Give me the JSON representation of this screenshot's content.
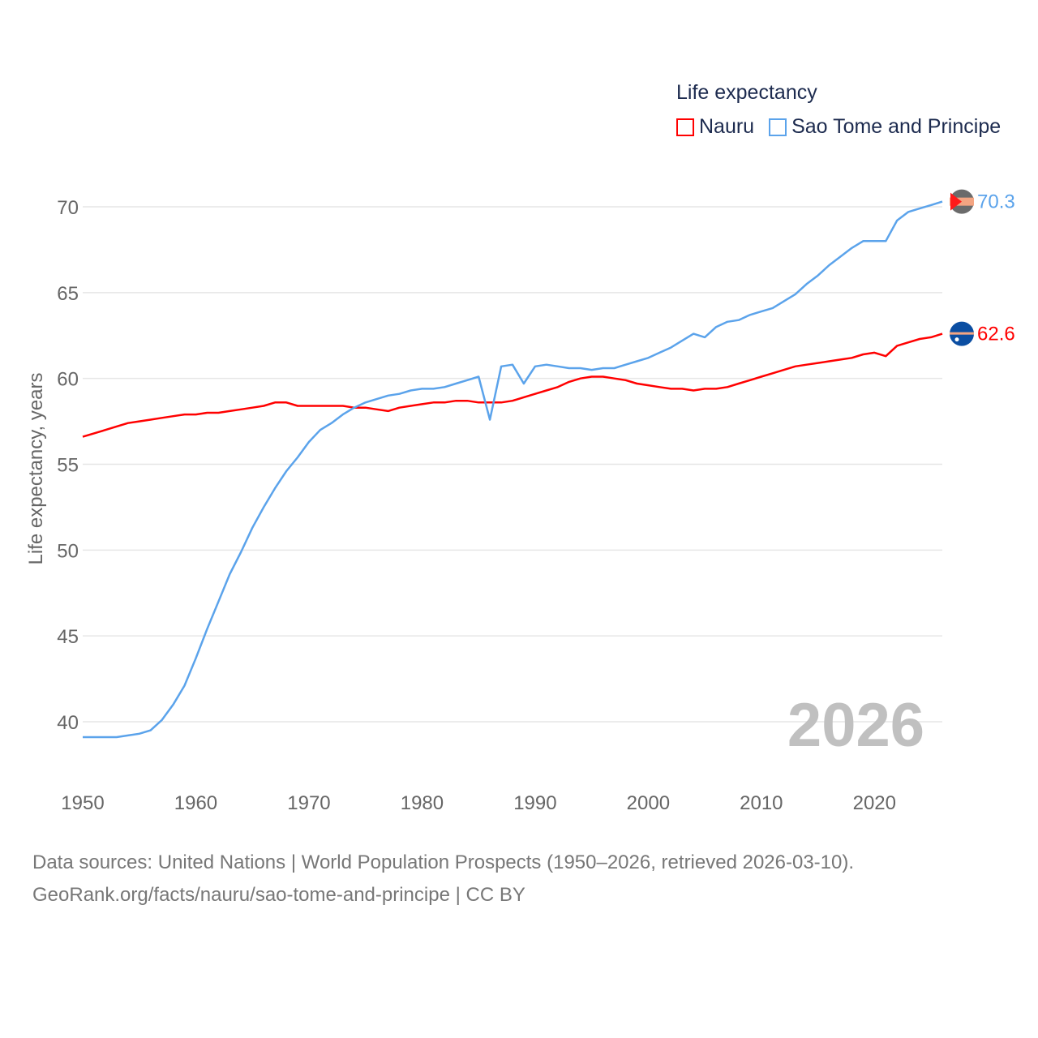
{
  "chart_data": {
    "type": "line",
    "title": "Life expectancy",
    "xlabel": "",
    "ylabel": "Life expectancy, years",
    "xlim": [
      1950,
      2026
    ],
    "ylim": [
      37.5,
      72
    ],
    "yticks": [
      40,
      45,
      50,
      55,
      60,
      65,
      70
    ],
    "xticks": [
      1950,
      1960,
      1970,
      1980,
      1990,
      2000,
      2010,
      2020
    ],
    "grid": true,
    "legend_position": "top-right",
    "year_watermark": "2026",
    "x": [
      1950,
      1951,
      1952,
      1953,
      1954,
      1955,
      1956,
      1957,
      1958,
      1959,
      1960,
      1961,
      1962,
      1963,
      1964,
      1965,
      1966,
      1967,
      1968,
      1969,
      1970,
      1971,
      1972,
      1973,
      1974,
      1975,
      1976,
      1977,
      1978,
      1979,
      1980,
      1981,
      1982,
      1983,
      1984,
      1985,
      1986,
      1987,
      1988,
      1989,
      1990,
      1991,
      1992,
      1993,
      1994,
      1995,
      1996,
      1997,
      1998,
      1999,
      2000,
      2001,
      2002,
      2003,
      2004,
      2005,
      2006,
      2007,
      2008,
      2009,
      2010,
      2011,
      2012,
      2013,
      2014,
      2015,
      2016,
      2017,
      2018,
      2019,
      2020,
      2021,
      2022,
      2023,
      2024,
      2025,
      2026
    ],
    "series": [
      {
        "name": "Nauru",
        "color": "#ff0000",
        "end_label": "62.6",
        "values": [
          56.6,
          56.8,
          57.0,
          57.2,
          57.4,
          57.5,
          57.6,
          57.7,
          57.8,
          57.9,
          57.9,
          58.0,
          58.0,
          58.1,
          58.2,
          58.3,
          58.4,
          58.6,
          58.6,
          58.4,
          58.4,
          58.4,
          58.4,
          58.4,
          58.3,
          58.3,
          58.2,
          58.1,
          58.3,
          58.4,
          58.5,
          58.6,
          58.6,
          58.7,
          58.7,
          58.6,
          58.6,
          58.6,
          58.7,
          58.9,
          59.1,
          59.3,
          59.5,
          59.8,
          60.0,
          60.1,
          60.1,
          60.0,
          59.9,
          59.7,
          59.6,
          59.5,
          59.4,
          59.4,
          59.3,
          59.4,
          59.4,
          59.5,
          59.7,
          59.9,
          60.1,
          60.3,
          60.5,
          60.7,
          60.8,
          60.9,
          61.0,
          61.1,
          61.2,
          61.4,
          61.5,
          61.3,
          61.9,
          62.1,
          62.3,
          62.4,
          62.6
        ]
      },
      {
        "name": "Sao Tome and Principe",
        "color": "#5ba3eb",
        "end_label": "70.3",
        "values": [
          39.1,
          39.1,
          39.1,
          39.1,
          39.2,
          39.3,
          39.5,
          40.1,
          41.0,
          42.1,
          43.7,
          45.4,
          47.0,
          48.6,
          49.9,
          51.3,
          52.5,
          53.6,
          54.6,
          55.4,
          56.3,
          57.0,
          57.4,
          57.9,
          58.3,
          58.6,
          58.8,
          59.0,
          59.1,
          59.3,
          59.4,
          59.4,
          59.5,
          59.7,
          59.9,
          60.1,
          57.6,
          60.7,
          60.8,
          59.7,
          60.7,
          60.8,
          60.7,
          60.6,
          60.6,
          60.5,
          60.6,
          60.6,
          60.8,
          61.0,
          61.2,
          61.5,
          61.8,
          62.2,
          62.6,
          62.4,
          63.0,
          63.3,
          63.4,
          63.7,
          63.9,
          64.1,
          64.5,
          64.9,
          65.5,
          66.0,
          66.6,
          67.1,
          67.6,
          68.0,
          68.0,
          68.0,
          69.2,
          69.7,
          69.9,
          70.1,
          70.3
        ]
      }
    ]
  },
  "legend": {
    "title": "Life expectancy",
    "items": [
      "Nauru",
      "Sao Tome and Principe"
    ]
  },
  "footer": {
    "line1": "Data sources: United Nations | World Population Prospects (1950–2026, retrieved 2026-03-10).",
    "line2": "GeoRank.org/facts/nauru/sao-tome-and-principe | CC BY"
  }
}
